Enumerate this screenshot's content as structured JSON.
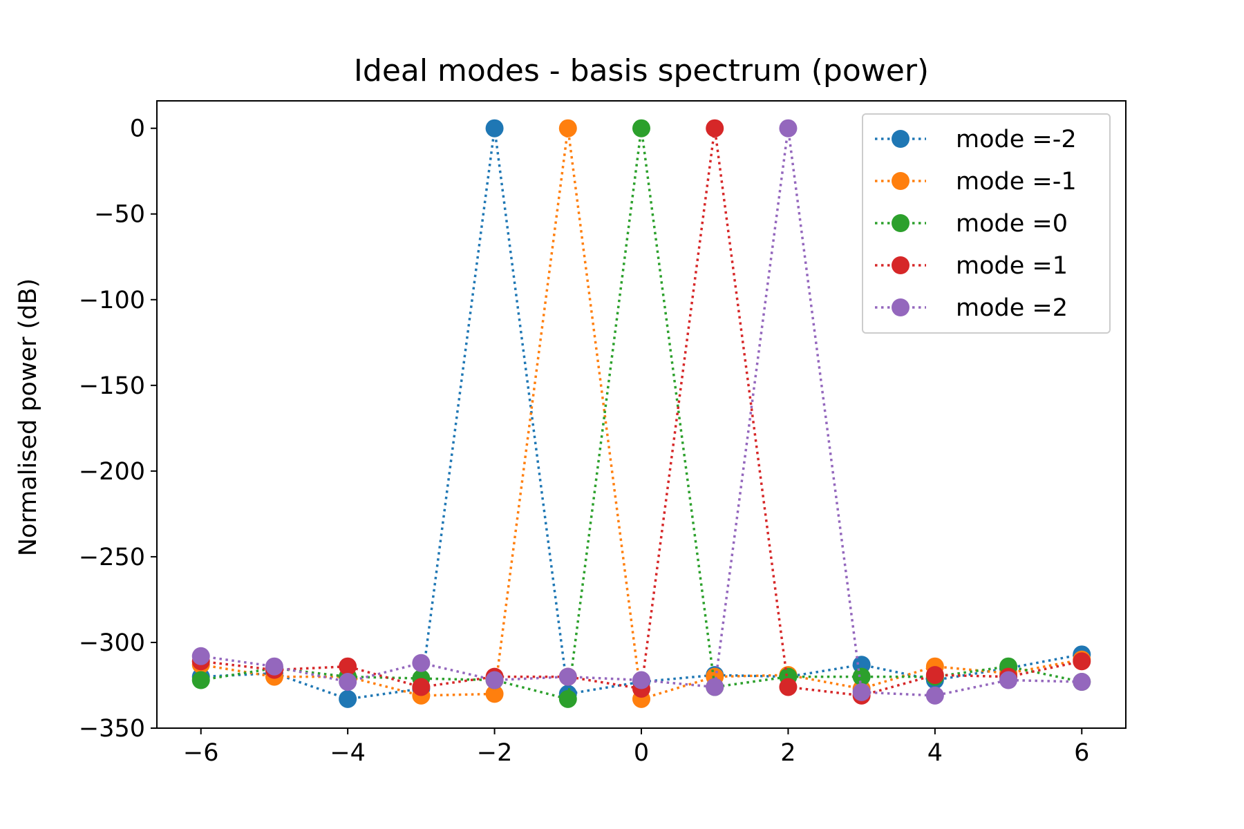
{
  "chart_data": {
    "type": "line",
    "title": "Ideal modes - basis spectrum (power)",
    "xlabel": "",
    "ylabel": "Normalised power (dB)",
    "xlim": [
      -6.6,
      6.6
    ],
    "ylim": [
      -350,
      16
    ],
    "grid": false,
    "legend_position": "top-right",
    "line_style": "dotted",
    "marker": "circle",
    "x_ticks": [
      -6,
      -4,
      -2,
      0,
      2,
      4,
      6
    ],
    "x_tick_labels": [
      "−6",
      "−4",
      "−2",
      "0",
      "2",
      "4",
      "6"
    ],
    "y_ticks": [
      0,
      -50,
      -100,
      -150,
      -200,
      -250,
      -300,
      -350
    ],
    "y_tick_labels": [
      "0",
      "−50",
      "−100",
      "−150",
      "−200",
      "−250",
      "−300",
      "−350"
    ],
    "x": [
      -6,
      -5,
      -4,
      -3,
      -2,
      -1,
      0,
      1,
      2,
      3,
      4,
      5,
      6
    ],
    "series": [
      {
        "name": "mode =-2",
        "color": "#1f77b4",
        "values": [
          -320,
          -318,
          -333,
          -327,
          0,
          -330,
          -323,
          -319,
          -320,
          -313,
          -322,
          -315,
          -307
        ]
      },
      {
        "name": "mode =-1",
        "color": "#ff7f0e",
        "values": [
          -313,
          -320,
          -320,
          -331,
          -330,
          0,
          -333,
          -320,
          -319,
          -327,
          -314,
          -318,
          -310
        ]
      },
      {
        "name": "mode =0",
        "color": "#2ca02c",
        "values": [
          -322,
          -315,
          -320,
          -321,
          -322,
          -333,
          0,
          -326,
          -320,
          -320,
          -320,
          -314,
          -323
        ]
      },
      {
        "name": "mode =1",
        "color": "#d62728",
        "values": [
          -311,
          -316,
          -314,
          -326,
          -320,
          -320,
          -327,
          0,
          -326,
          -331,
          -319,
          -320,
          -311
        ]
      },
      {
        "name": "mode =2",
        "color": "#9467bd",
        "values": [
          -308,
          -314,
          -323,
          -312,
          -322,
          -320,
          -322,
          -326,
          0,
          -329,
          -331,
          -322,
          -323
        ]
      }
    ]
  }
}
